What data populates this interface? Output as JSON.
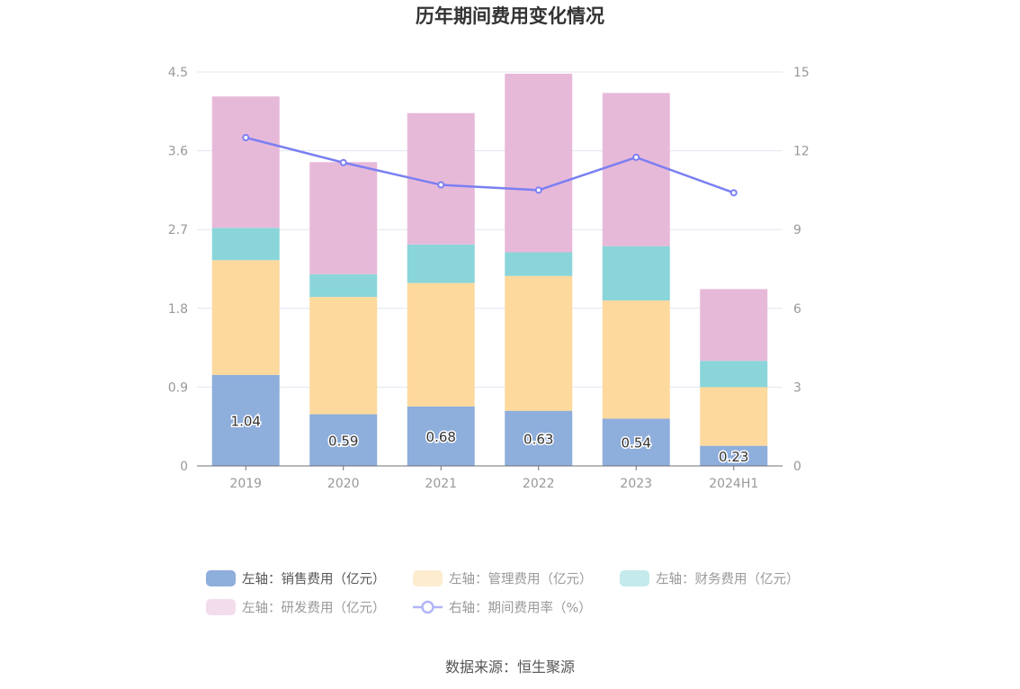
{
  "chart_data": {
    "type": "bar",
    "title": "历年期间费用变化情况",
    "categories": [
      "2019",
      "2020",
      "2021",
      "2022",
      "2023",
      "2024H1"
    ],
    "stacked": true,
    "y_left": {
      "min": 0,
      "max": 4.5,
      "ticks": [
        "0",
        "0.9",
        "1.8",
        "2.7",
        "3.6",
        "4.5"
      ]
    },
    "y_right": {
      "min": 0,
      "max": 15,
      "ticks": [
        "0",
        "3",
        "6",
        "9",
        "12",
        "15"
      ]
    },
    "series": [
      {
        "name": "左轴：销售费用（亿元）",
        "type": "bar",
        "axis": "left",
        "color": "#8eaedc",
        "values": [
          1.04,
          0.59,
          0.68,
          0.63,
          0.54,
          0.23
        ],
        "labels": [
          "1.04",
          "0.59",
          "0.68",
          "0.63",
          "0.54",
          "0.23"
        ]
      },
      {
        "name": "左轴：管理费用（亿元）",
        "type": "bar",
        "axis": "left",
        "color": "#fed99d",
        "values": [
          1.31,
          1.34,
          1.41,
          1.54,
          1.35,
          0.67
        ]
      },
      {
        "name": "左轴：财务费用（亿元）",
        "type": "bar",
        "axis": "left",
        "color": "#8ad5da",
        "values": [
          0.37,
          0.26,
          0.44,
          0.27,
          0.62,
          0.3
        ]
      },
      {
        "name": "左轴：研发费用（亿元）",
        "type": "bar",
        "axis": "left",
        "color": "#e7b9d9",
        "values": [
          1.5,
          1.28,
          1.5,
          2.04,
          1.75,
          0.82
        ]
      },
      {
        "name": "右轴：期间费用率（%）",
        "type": "line",
        "axis": "right",
        "color": "#7b7ff2",
        "values": [
          12.5,
          11.55,
          10.7,
          10.5,
          11.75,
          10.4
        ]
      }
    ],
    "grid": true,
    "legend_position": "bottom"
  },
  "source": "数据来源：恒生聚源"
}
